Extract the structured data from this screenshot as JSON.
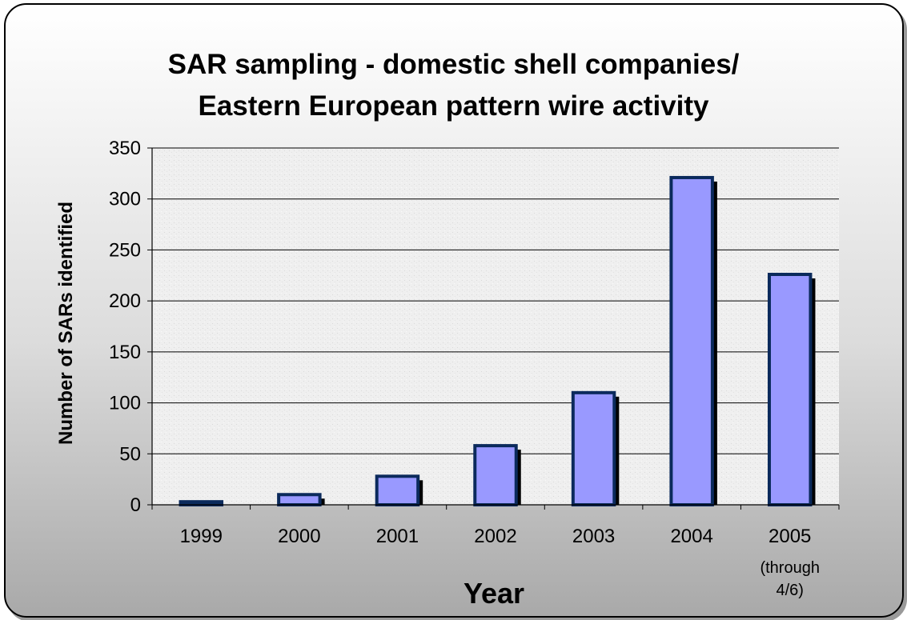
{
  "chart_data": {
    "type": "bar",
    "title_lines": [
      "SAR sampling - domestic shell companies/",
      "Eastern European pattern wire activity"
    ],
    "xlabel": "Year",
    "ylabel": "Number of SARs identified",
    "categories": [
      [
        "1999"
      ],
      [
        "2000"
      ],
      [
        "2001"
      ],
      [
        "2002"
      ],
      [
        "2003"
      ],
      [
        "2004"
      ],
      [
        "2005",
        "(through",
        "4/6)"
      ]
    ],
    "values": [
      3,
      10,
      28,
      58,
      110,
      321,
      226
    ],
    "ylim": [
      0,
      350
    ],
    "yticks": [
      0,
      50,
      100,
      150,
      200,
      250,
      300,
      350
    ],
    "grid": true,
    "legend": "none",
    "colors": {
      "bar_fill": "#9999ff",
      "bar_border": "#0b2a5c",
      "bar_shadow": "#000000",
      "plot_background": "#eeeeee",
      "gridline": "#000000"
    }
  }
}
